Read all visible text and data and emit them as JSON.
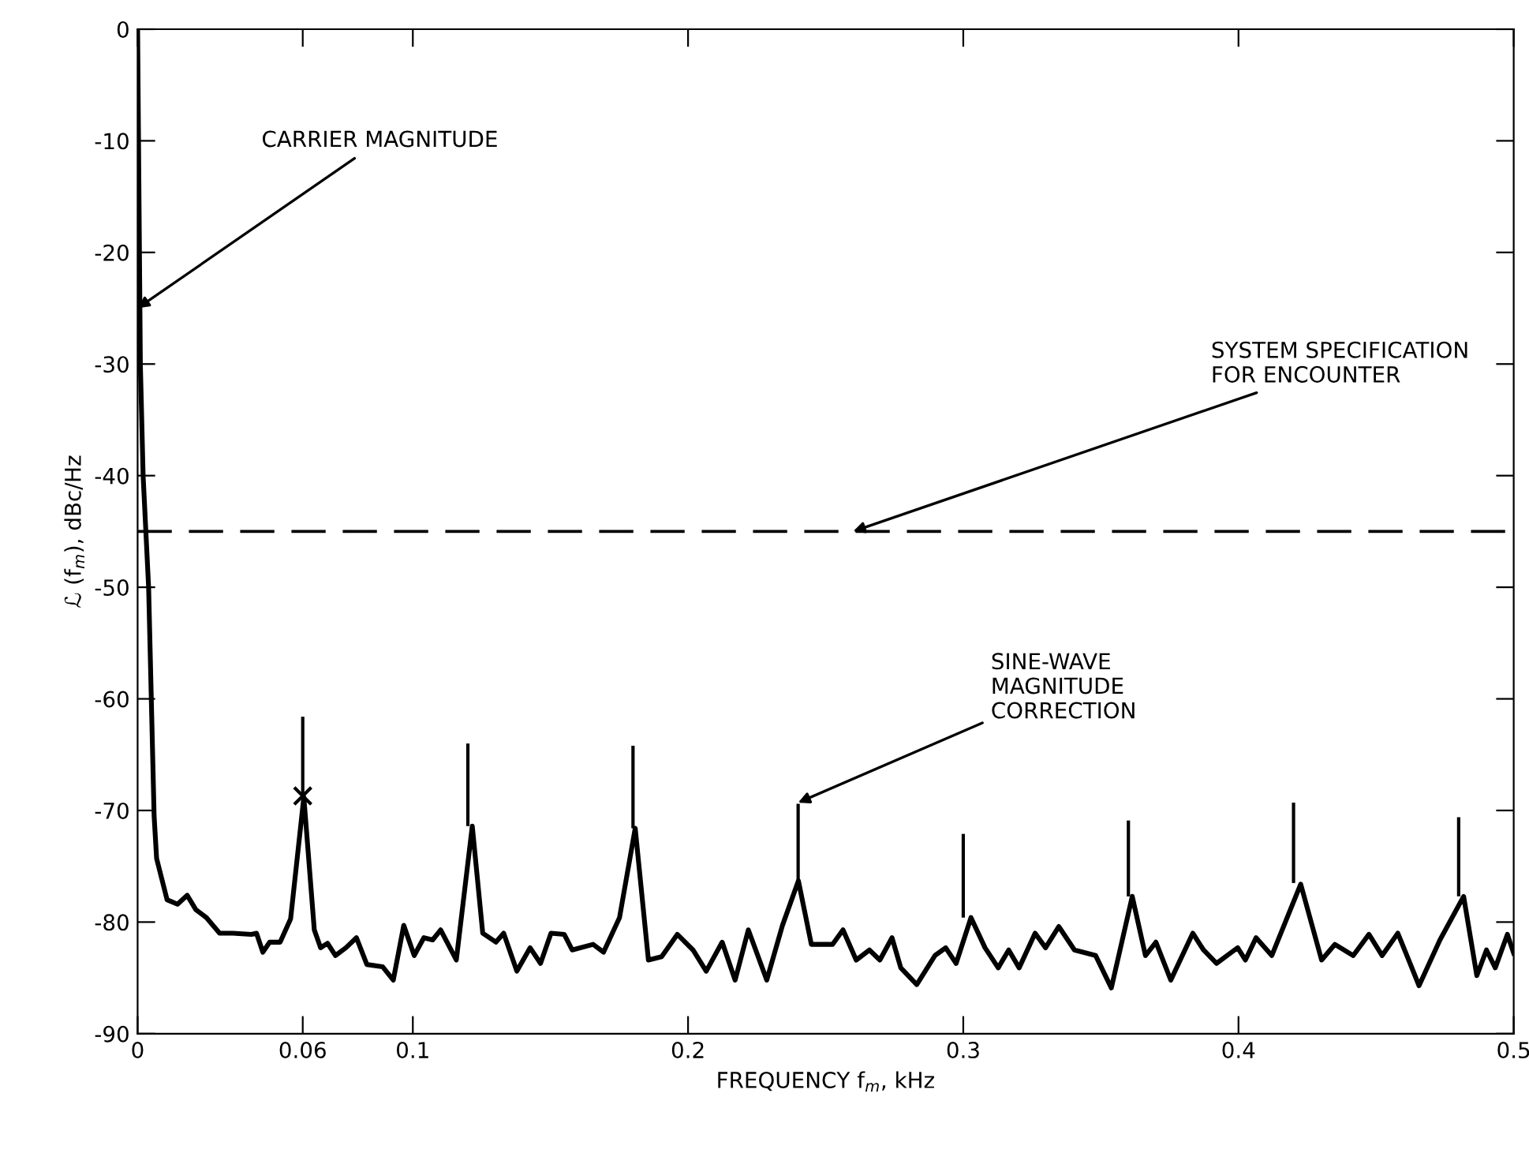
{
  "chart_data": {
    "type": "line",
    "xlabel": "FREQUENCY f$_{m}$, kHz",
    "ylabel": "ℒ (f$_{m}$), dBc/Hz",
    "xlim": [
      0,
      0.5
    ],
    "xticks": [
      0,
      0.06,
      0.1,
      0.2,
      0.3,
      0.4,
      0.5
    ],
    "ylim": [
      -90,
      0
    ],
    "yticks": [
      -90,
      -80,
      -70,
      -60,
      -50,
      -40,
      -30,
      -20,
      -10,
      0
    ],
    "grid": false,
    "series": [
      {
        "color": "#000000",
        "x": [
          0,
          0.001,
          0.002,
          0.004,
          0.006,
          0.0069,
          0.0107,
          0.0145,
          0.018,
          0.0212,
          0.025,
          0.0298,
          0.0346,
          0.0413,
          0.0432,
          0.0455,
          0.048,
          0.0518,
          0.0556,
          0.0604,
          0.0642,
          0.0665,
          0.069,
          0.0719,
          0.0757,
          0.0795,
          0.0833,
          0.089,
          0.0929,
          0.0967,
          0.1005,
          0.104,
          0.1072,
          0.1101,
          0.1158,
          0.1216,
          0.1254,
          0.1302,
          0.133,
          0.1378,
          0.1426,
          0.1464,
          0.1502,
          0.155,
          0.1579,
          0.1655,
          0.1693,
          0.1751,
          0.1808,
          0.1856,
          0.1904,
          0.1961,
          0.2018,
          0.2066,
          0.2124,
          0.2171,
          0.2219,
          0.2286,
          0.2343,
          0.2401,
          0.2448,
          0.2525,
          0.2563,
          0.2611,
          0.2659,
          0.2697,
          0.2741,
          0.2773,
          0.2831,
          0.2897,
          0.2936,
          0.2974,
          0.3028,
          0.3079,
          0.3127,
          0.3165,
          0.3203,
          0.3261,
          0.3299,
          0.3347,
          0.3404,
          0.3481,
          0.3538,
          0.3614,
          0.3662,
          0.37,
          0.3754,
          0.3834,
          0.3873,
          0.392,
          0.3997,
          0.4025,
          0.4064,
          0.4121,
          0.4226,
          0.4302,
          0.435,
          0.4417,
          0.4474,
          0.4522,
          0.4579,
          0.4656,
          0.4732,
          0.4818,
          0.4866,
          0.4901,
          0.4933,
          0.4977,
          0.5
        ],
        "values": [
          0,
          -30,
          -40,
          -50,
          -70.5,
          -74.3,
          -78,
          -78.4,
          -77.6,
          -78.9,
          -79.6,
          -81,
          -81,
          -81.1,
          -81,
          -82.7,
          -81.8,
          -81.8,
          -79.7,
          -68.8,
          -80.7,
          -82.3,
          -81.9,
          -83,
          -82.3,
          -81.4,
          -83.8,
          -84,
          -85.2,
          -80.3,
          -83,
          -81.4,
          -81.6,
          -80.7,
          -83.4,
          -71.4,
          -81,
          -81.8,
          -81,
          -84.4,
          -82.3,
          -83.7,
          -81,
          -81.1,
          -82.5,
          -82,
          -82.7,
          -79.6,
          -71.6,
          -83.4,
          -83.1,
          -81.1,
          -82.5,
          -84.4,
          -81.8,
          -85.2,
          -80.7,
          -85.2,
          -80.3,
          -76.3,
          -82,
          -82,
          -80.7,
          -83.4,
          -82.5,
          -83.4,
          -81.4,
          -84.1,
          -85.6,
          -83,
          -82.3,
          -83.7,
          -79.6,
          -82.3,
          -84.1,
          -82.5,
          -84.1,
          -81,
          -82.3,
          -80.4,
          -82.5,
          -83,
          -85.9,
          -77.7,
          -83,
          -81.8,
          -85.2,
          -81,
          -82.5,
          -83.7,
          -82.3,
          -83.4,
          -81.4,
          -83,
          -76.6,
          -83.4,
          -82,
          -83,
          -81.1,
          -83,
          -81,
          -85.7,
          -81.6,
          -77.7,
          -84.8,
          -82.5,
          -84.1,
          -81.1,
          -82.8
        ]
      },
      {
        "type": "bar",
        "color": "#000000",
        "x": [
          0.06,
          0.12,
          0.18,
          0.24,
          0.3,
          0.36,
          0.42,
          0.48
        ],
        "base": [
          -68.7,
          -71.4,
          -71.6,
          -76.3,
          -79.6,
          -77.7,
          -76.5,
          -77.7
        ],
        "values": [
          7.1,
          7.4,
          7.4,
          6.9,
          7.5,
          6.8,
          7.2,
          7.1
        ]
      },
      {
        "type": "scatter",
        "color": "#000000",
        "marker": "cross",
        "x": [
          0.06
        ],
        "values": [
          -68.7
        ]
      }
    ],
    "ref_lines": [
      {
        "axis": "y",
        "value": -45,
        "color": "#000000",
        "line_style": "dashed"
      }
    ],
    "annotations": [
      {
        "text": "CARRIER MAGNITUDE",
        "x": 0,
        "y": -25
      },
      {
        "text": "SYSTEM SPECIFICATION\nFOR ENCOUNTER",
        "x": 0.26,
        "y": -45
      },
      {
        "text": "SINE-WAVE\nMAGNITUDE\nCORRECTION",
        "x": 0.24,
        "y": -69.3
      }
    ]
  }
}
